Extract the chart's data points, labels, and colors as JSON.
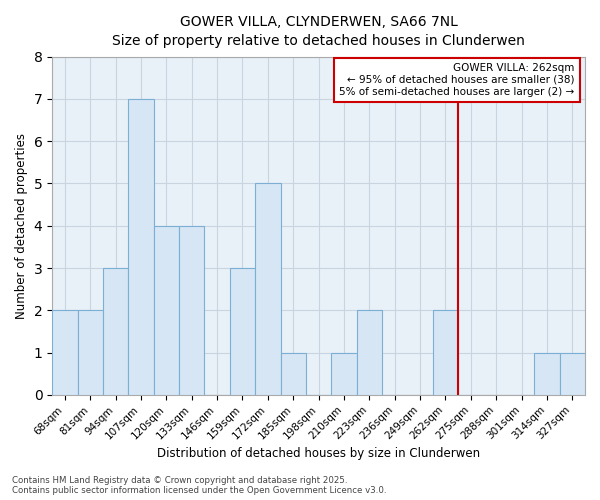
{
  "title": "GOWER VILLA, CLYNDERWEN, SA66 7NL",
  "subtitle": "Size of property relative to detached houses in Clunderwen",
  "xlabel": "Distribution of detached houses by size in Clunderwen",
  "ylabel": "Number of detached properties",
  "categories": [
    "68sqm",
    "81sqm",
    "94sqm",
    "107sqm",
    "120sqm",
    "133sqm",
    "146sqm",
    "159sqm",
    "172sqm",
    "185sqm",
    "198sqm",
    "210sqm",
    "223sqm",
    "236sqm",
    "249sqm",
    "262sqm",
    "275sqm",
    "288sqm",
    "301sqm",
    "314sqm",
    "327sqm"
  ],
  "values": [
    2,
    2,
    3,
    7,
    4,
    4,
    0,
    3,
    5,
    1,
    0,
    1,
    2,
    0,
    0,
    2,
    0,
    0,
    0,
    1,
    1
  ],
  "bar_color": "#d6e6f5",
  "bar_edge_color": "#7bafd4",
  "highlight_index": 15,
  "highlight_line_color": "#cc0000",
  "ylim": [
    0,
    8
  ],
  "yticks": [
    0,
    1,
    2,
    3,
    4,
    5,
    6,
    7,
    8
  ],
  "annotation_text": "GOWER VILLA: 262sqm\n← 95% of detached houses are smaller (38)\n5% of semi-detached houses are larger (2) →",
  "annotation_box_color": "#cc0000",
  "footer_text": "Contains HM Land Registry data © Crown copyright and database right 2025.\nContains public sector information licensed under the Open Government Licence v3.0.",
  "grid_color": "#c8d4e0",
  "background_color": "#e8f0f8"
}
